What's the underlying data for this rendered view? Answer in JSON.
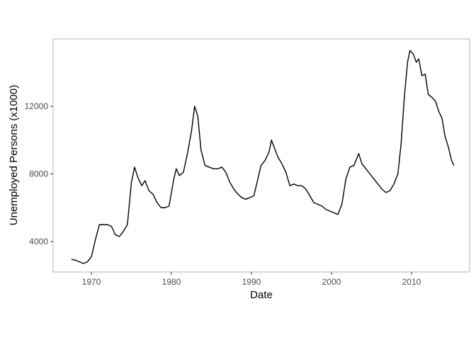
{
  "chart_data": {
    "type": "line",
    "x_label": "Date",
    "y_label": "Unemployed Persons (x1000)",
    "x": [
      1967.5,
      1968.0,
      1968.5,
      1969.0,
      1969.5,
      1970.0,
      1970.5,
      1971.0,
      1971.5,
      1972.0,
      1972.5,
      1973.0,
      1973.5,
      1974.0,
      1974.5,
      1975.0,
      1975.4,
      1975.8,
      1976.3,
      1976.7,
      1977.2,
      1977.7,
      1978.2,
      1978.7,
      1979.2,
      1979.7,
      1980.3,
      1980.6,
      1981.0,
      1981.5,
      1982.0,
      1982.5,
      1982.9,
      1983.3,
      1983.7,
      1984.2,
      1984.7,
      1985.3,
      1985.8,
      1986.3,
      1986.8,
      1987.3,
      1987.8,
      1988.3,
      1988.8,
      1989.3,
      1989.8,
      1990.3,
      1990.7,
      1991.2,
      1991.7,
      1992.2,
      1992.5,
      1992.9,
      1993.3,
      1993.8,
      1994.3,
      1994.8,
      1995.3,
      1995.8,
      1996.3,
      1996.8,
      1997.3,
      1997.8,
      1998.3,
      1998.8,
      1999.3,
      1999.8,
      2000.3,
      2000.8,
      2001.3,
      2001.8,
      2002.3,
      2002.8,
      2003.4,
      2003.8,
      2004.3,
      2004.8,
      2005.3,
      2005.8,
      2006.3,
      2006.8,
      2007.3,
      2007.8,
      2008.3,
      2008.7,
      2009.1,
      2009.5,
      2009.8,
      2010.2,
      2010.6,
      2010.9,
      2011.3,
      2011.7,
      2012.1,
      2012.6,
      2013.0,
      2013.4,
      2013.8,
      2014.2,
      2014.6,
      2015.0,
      2015.3
    ],
    "series": [
      {
        "color": "#000000",
        "values": [
          2944,
          2900,
          2800,
          2700,
          2800,
          3100,
          4100,
          5000,
          5000,
          5000,
          4900,
          4400,
          4300,
          4600,
          5000,
          7500,
          8400,
          7800,
          7300,
          7600,
          7000,
          6800,
          6300,
          6000,
          6000,
          6100,
          7700,
          8300,
          7900,
          8100,
          9200,
          10500,
          12000,
          11400,
          9400,
          8500,
          8400,
          8300,
          8300,
          8400,
          8100,
          7500,
          7100,
          6800,
          6600,
          6500,
          6600,
          6700,
          7500,
          8500,
          8800,
          9300,
          10000,
          9500,
          9000,
          8600,
          8100,
          7300,
          7400,
          7300,
          7300,
          7100,
          6700,
          6300,
          6200,
          6100,
          5900,
          5800,
          5700,
          5600,
          6200,
          7700,
          8400,
          8500,
          9200,
          8600,
          8300,
          8000,
          7700,
          7400,
          7100,
          6900,
          7000,
          7400,
          8000,
          9800,
          12500,
          14600,
          15300,
          15100,
          14600,
          14800,
          13800,
          13900,
          12700,
          12500,
          12300,
          11700,
          11300,
          10200,
          9600,
          8800,
          8500
        ]
      }
    ],
    "xlim": [
      1965.22,
      2017.26
    ],
    "xticks": [
      1970,
      1980,
      1990,
      2000,
      2010
    ],
    "ylim": [
      2199,
      15979
    ],
    "yticks": [
      4000,
      8000,
      12000
    ]
  }
}
